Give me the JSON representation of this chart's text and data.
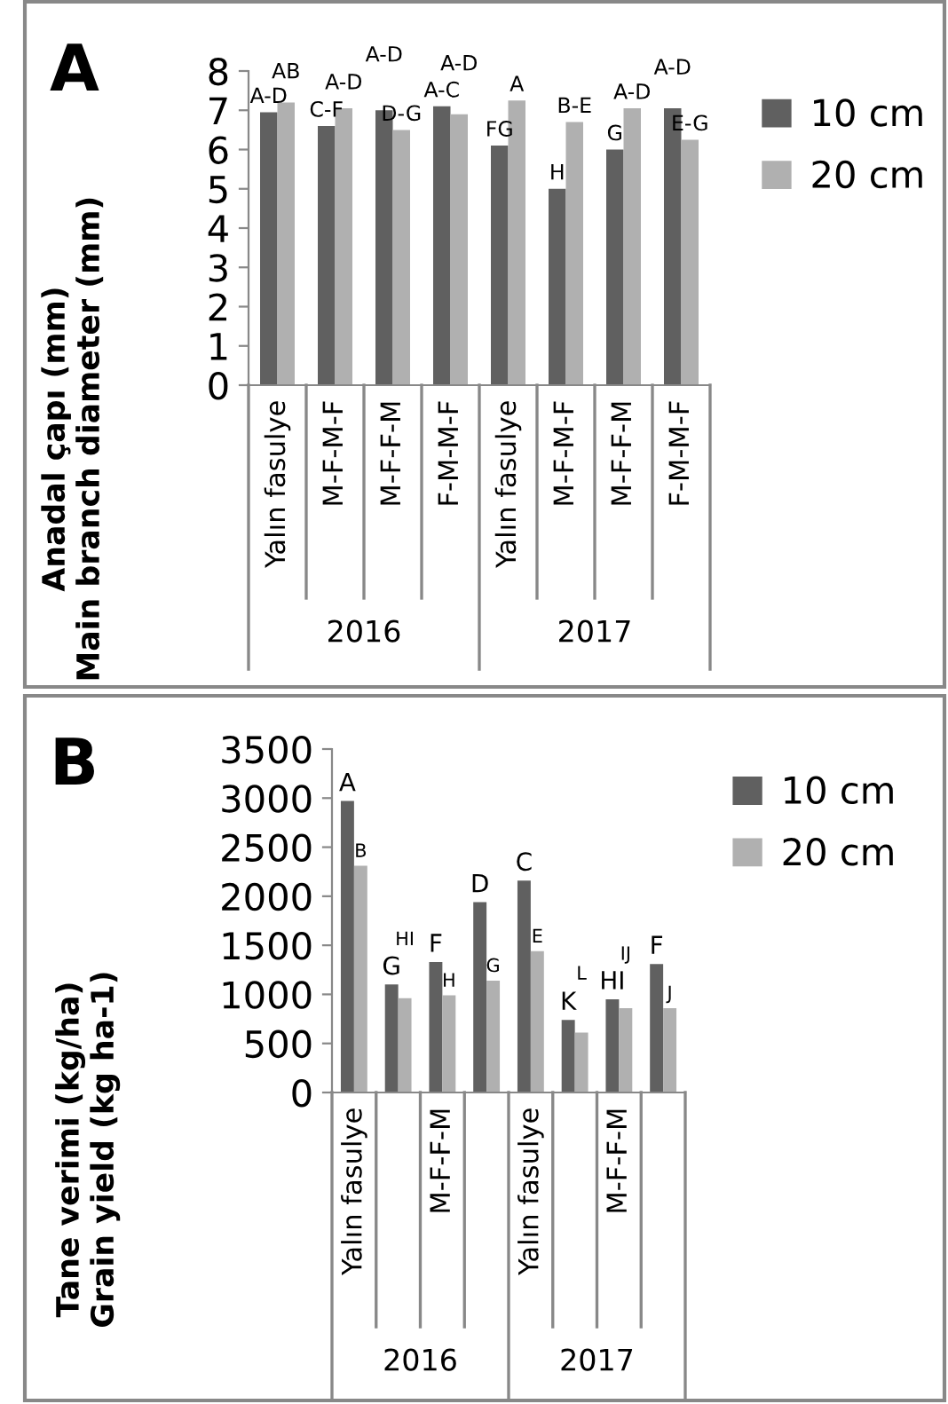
{
  "chart_data": [
    {
      "type": "bar",
      "title": "A",
      "ylabel": "Anadal çapı (mm)\nMain branch diameter (mm)",
      "categories": [
        "Yalın fasulye",
        "M-F-M-F",
        "M-F-F-M",
        "F-M-M-F",
        "Yalın fasulye",
        "M-F-M-F",
        "M-F-F-M",
        "F-M-M-F"
      ],
      "series": [
        {
          "name": "10 cm",
          "color": "#606060",
          "values": [
            6.95,
            6.6,
            7.0,
            7.1,
            6.1,
            5.0,
            6.0,
            7.05
          ],
          "value_labels": [
            "A-D",
            "C-F",
            "A-D",
            "A-C",
            "FG",
            "H",
            "G",
            "A-D"
          ]
        },
        {
          "name": "20 cm",
          "color": "#b0b0b0",
          "values": [
            7.2,
            7.05,
            6.5,
            6.9,
            7.25,
            6.7,
            7.05,
            6.25
          ],
          "value_labels": [
            "AB",
            "A-D",
            "D-G",
            "A-D",
            "A",
            "B-E",
            "A-D",
            "E-G"
          ]
        }
      ],
      "annotations": [
        "2016",
        "2017"
      ],
      "ylim": [
        0,
        8
      ],
      "yticks": [
        0,
        1,
        2,
        3,
        4,
        5,
        6,
        7,
        8
      ],
      "grid": false,
      "legend": "top right"
    },
    {
      "type": "bar",
      "title": "B",
      "ylabel": "Tane verimi (kg/ha)\nGrain yield (kg ha-1)",
      "categories": [
        "Yalın fasulye",
        null,
        "M-F-F-M",
        null,
        "Yalın fasulye",
        null,
        "M-F-F-M",
        null
      ],
      "series": [
        {
          "name": "10 cm",
          "color": "#606060",
          "values": [
            2970,
            1100,
            1330,
            1940,
            2160,
            740,
            950,
            1310
          ],
          "value_labels": [
            "A",
            "G",
            "F",
            "D",
            "C",
            "K",
            "HI",
            "F"
          ]
        },
        {
          "name": "20 cm",
          "color": "#b0b0b0",
          "values": [
            2310,
            960,
            990,
            1140,
            1440,
            610,
            860,
            860
          ],
          "value_labels": [
            "B",
            "HI",
            "H",
            "G",
            "E",
            "L",
            "IJ",
            "J"
          ]
        }
      ],
      "annotations": [
        "2016",
        "2017"
      ],
      "ylim": [
        0,
        3500
      ],
      "yticks": [
        0,
        500,
        1000,
        1500,
        2000,
        2500,
        3000,
        3500
      ],
      "grid": false,
      "legend": "top right"
    }
  ]
}
